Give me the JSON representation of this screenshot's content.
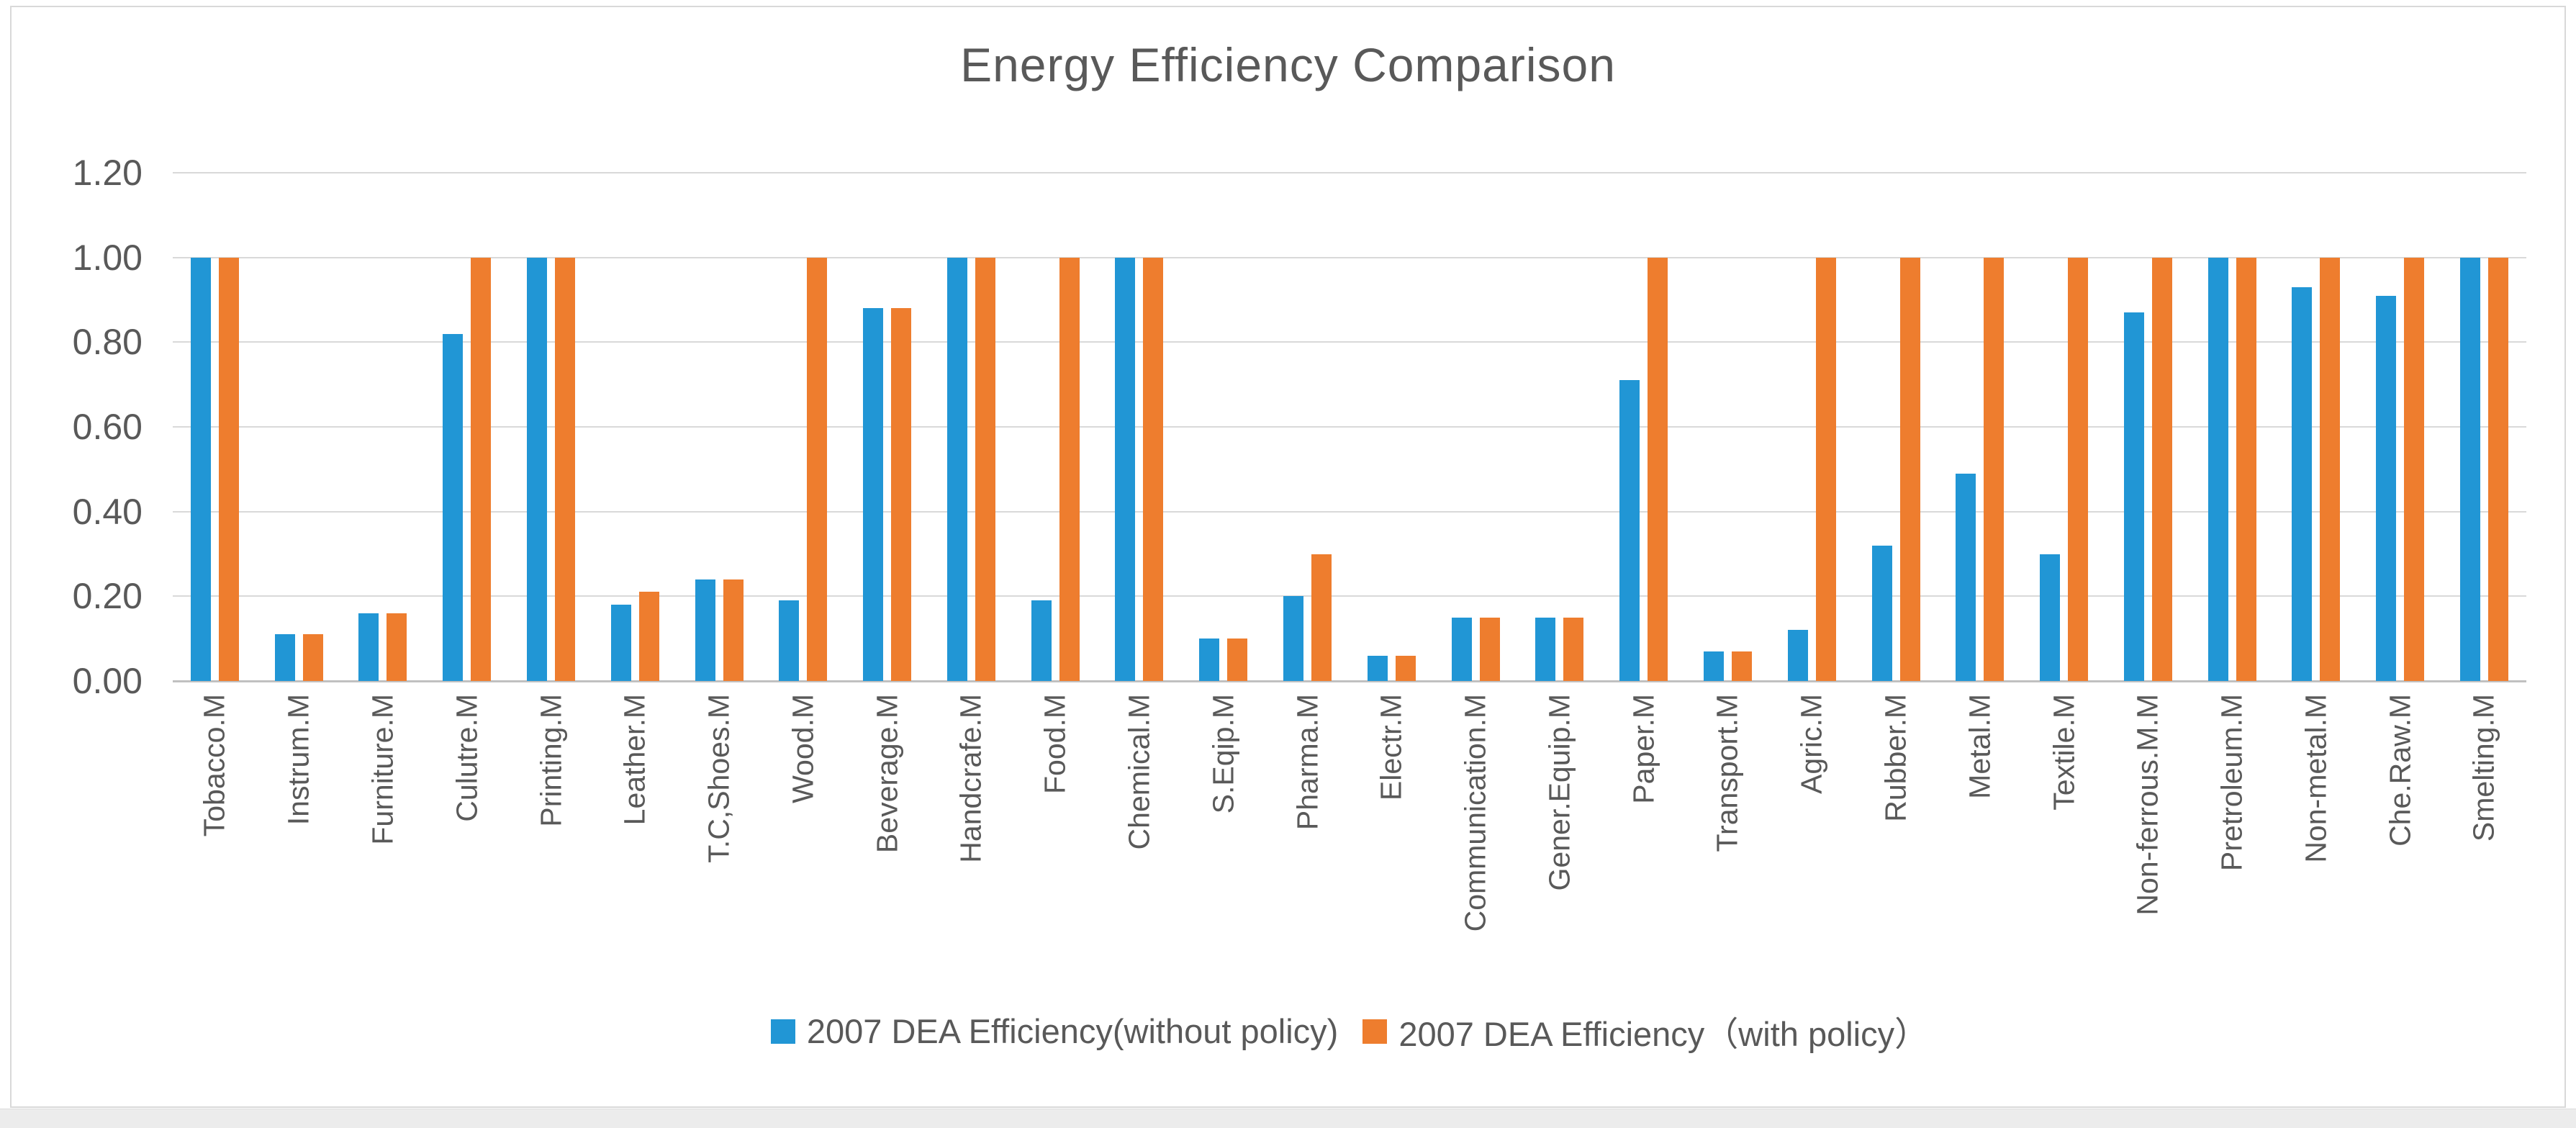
{
  "chart_data": {
    "type": "bar",
    "title": "Energy Efficiency Comparison",
    "categories": [
      "Tobacco.M",
      "Instrum.M",
      "Furniture.M",
      "Culutre.M",
      "Printing.M",
      "Leather.M",
      "T.C,Shoes.M",
      "Wood.M",
      "Beverage.M",
      "Handcrafe.M",
      "Food.M",
      "Chemical.M",
      "S.Eqip.M",
      "Pharma.M",
      "Electr.M",
      "Communication.M",
      "Gener.Equip.M",
      "Paper.M",
      "Transport.M",
      "Agric.M",
      "Rubber.M",
      "Metal.M",
      "Textile.M",
      "Non-ferrous.M.M",
      "Pretroleum.M",
      "Non-metal.M",
      "Che.Raw.M",
      "Smelting.M"
    ],
    "series": [
      {
        "name": "2007 DEA Efficiency(without policy)",
        "color": "#2196d5",
        "values": [
          1.0,
          0.11,
          0.16,
          0.82,
          1.0,
          0.18,
          0.24,
          0.19,
          0.88,
          1.0,
          0.19,
          1.0,
          0.1,
          0.2,
          0.06,
          0.15,
          0.15,
          0.71,
          0.07,
          0.12,
          0.32,
          0.49,
          0.3,
          0.87,
          1.0,
          0.93,
          0.91,
          1.0
        ]
      },
      {
        "name": "2007 DEA Efficiency（with policy）",
        "color": "#ee7d2e",
        "values": [
          1.0,
          0.11,
          0.16,
          1.0,
          1.0,
          0.21,
          0.24,
          1.0,
          0.88,
          1.0,
          1.0,
          1.0,
          0.1,
          0.3,
          0.06,
          0.15,
          0.15,
          1.0,
          0.07,
          1.0,
          1.0,
          1.0,
          1.0,
          1.0,
          1.0,
          1.0,
          1.0,
          1.0
        ]
      }
    ],
    "ylim": [
      0,
      1.2
    ],
    "y_ticks": [
      "1.20",
      "1.00",
      "0.80",
      "0.60",
      "0.40",
      "0.20",
      "0.00"
    ],
    "grid": true,
    "legend_position": "bottom",
    "x_label_rotation": -90
  },
  "colors": {
    "title_text": "#595959",
    "axis_text": "#595959",
    "gridline": "#d9d9d9",
    "axis_line": "#c0c0c0",
    "frame_border": "#d9d9d9",
    "page_strip": "#ececec",
    "background": "#ffffff"
  }
}
